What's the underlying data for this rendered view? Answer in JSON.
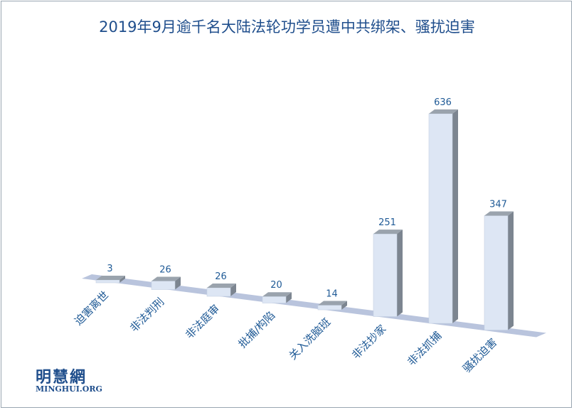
{
  "chart_data": {
    "type": "bar",
    "title": "2019年9月逾千名大陆法轮功学员遭中共绑架、骚扰迫害",
    "categories": [
      "迫害离世",
      "非法判刑",
      "非法庭审",
      "批捕/构陷",
      "关入洗脑班",
      "非法抄家",
      "非法抓捕",
      "骚扰迫害"
    ],
    "values": [
      3,
      26,
      26,
      20,
      14,
      251,
      636,
      347
    ],
    "ylim": [
      0,
      636
    ],
    "grid": false,
    "legend": "none",
    "colors": {
      "bar_front": "#dde6f4",
      "bar_top": "#9aa3ad",
      "bar_side": "#7c8590",
      "floor": "#b9c4dd",
      "text": "#1f5a96"
    }
  },
  "branding": {
    "logo_cn": "明慧網",
    "logo_en": "MINGHUI.ORG"
  }
}
